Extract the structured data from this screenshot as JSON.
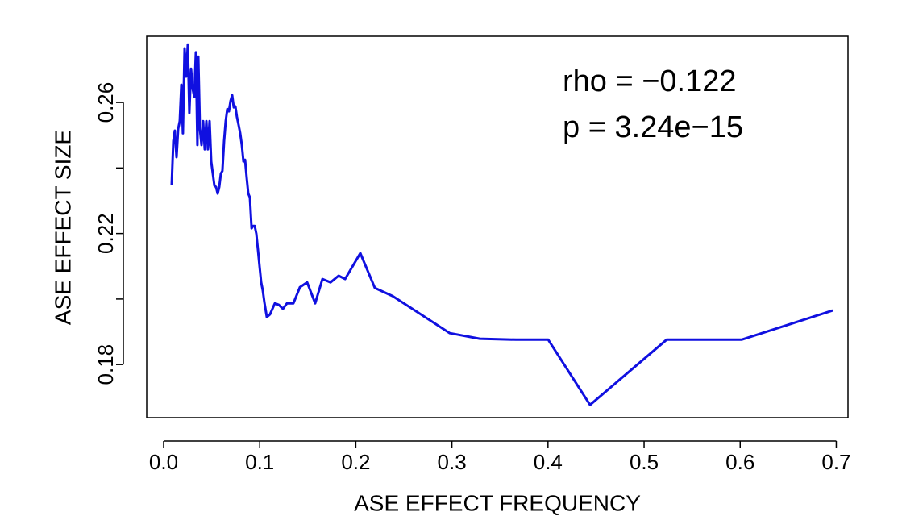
{
  "chart_data": {
    "type": "line",
    "x_label": "ASE EFFECT FREQUENCY",
    "y_label": "ASE EFFECT SIZE",
    "annotations": [
      "rho = −0.122",
      "p = 3.24e−15"
    ],
    "color": "#1010e0",
    "x": [
      0.0084,
      0.0101,
      0.0117,
      0.0134,
      0.0151,
      0.0168,
      0.0185,
      0.0201,
      0.0218,
      0.0235,
      0.0252,
      0.0268,
      0.0285,
      0.0302,
      0.0319,
      0.0336,
      0.0352,
      0.0361,
      0.0378,
      0.0394,
      0.0411,
      0.0428,
      0.0445,
      0.0461,
      0.0478,
      0.0495,
      0.0512,
      0.0529,
      0.0545,
      0.0562,
      0.0579,
      0.0596,
      0.0612,
      0.0629,
      0.0646,
      0.0663,
      0.068,
      0.0696,
      0.0713,
      0.073,
      0.0747,
      0.0763,
      0.078,
      0.0797,
      0.0814,
      0.0831,
      0.0847,
      0.0864,
      0.0881,
      0.0898,
      0.0915,
      0.0931,
      0.0948,
      0.0965,
      0.0982,
      0.0998,
      0.1015,
      0.1032,
      0.1049,
      0.1074,
      0.1107,
      0.1158,
      0.12,
      0.1242,
      0.1284,
      0.1351,
      0.1418,
      0.1493,
      0.1577,
      0.1653,
      0.1737,
      0.1821,
      0.1888,
      0.2047,
      0.2198,
      0.2383,
      0.2978,
      0.3289,
      0.3666,
      0.4002,
      0.4438,
      0.5235,
      0.6015,
      0.6963
    ],
    "values": [
      0.2349,
      0.2482,
      0.2514,
      0.2433,
      0.2519,
      0.2543,
      0.2654,
      0.2506,
      0.2765,
      0.2679,
      0.2777,
      0.2568,
      0.2703,
      0.2642,
      0.2617,
      0.2753,
      0.247,
      0.274,
      0.2519,
      0.247,
      0.2543,
      0.2457,
      0.2543,
      0.2457,
      0.2543,
      0.242,
      0.2383,
      0.2346,
      0.2342,
      0.2322,
      0.2342,
      0.2383,
      0.2391,
      0.2482,
      0.2543,
      0.258,
      0.2573,
      0.2605,
      0.2622,
      0.2585,
      0.2588,
      0.2556,
      0.2531,
      0.2506,
      0.247,
      0.242,
      0.2425,
      0.2371,
      0.2322,
      0.231,
      0.2216,
      0.2223,
      0.2223,
      0.2199,
      0.215,
      0.21,
      0.2051,
      0.2026,
      0.199,
      0.1945,
      0.1953,
      0.1987,
      0.1982,
      0.197,
      0.1987,
      0.1987,
      0.2036,
      0.2051,
      0.1987,
      0.2061,
      0.2051,
      0.2071,
      0.2061,
      0.214,
      0.2034,
      0.2009,
      0.1896,
      0.1879,
      0.1876,
      0.1876,
      0.1677,
      0.1876,
      0.1876,
      0.1965
    ],
    "xlim": [
      -0.0176,
      0.7122
    ],
    "ylim": [
      0.1638,
      0.2802
    ],
    "xticks": [
      {
        "value": 0,
        "label": "0.0"
      },
      0.1,
      0.2,
      0.3,
      0.4,
      0.5,
      0.6,
      0.7
    ],
    "yticks": [
      0.18,
      0.22,
      0.26
    ],
    "yminor_ticks": [
      0.2,
      0.24
    ]
  }
}
